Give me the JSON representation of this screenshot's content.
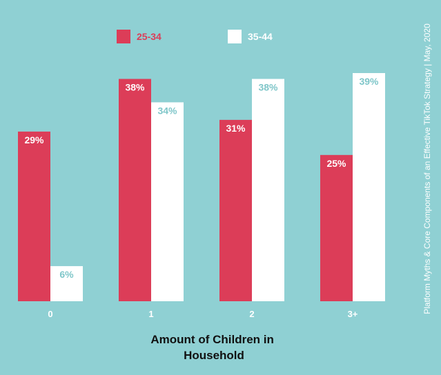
{
  "chart_data": {
    "type": "bar",
    "categories": [
      "0",
      "1",
      "2",
      "3+"
    ],
    "series": [
      {
        "name": "25-34",
        "values": [
          29,
          38,
          31,
          25
        ],
        "color": "#dc3d58",
        "label_color": "#ffffff"
      },
      {
        "name": "35-44",
        "values": [
          6,
          34,
          38,
          39
        ],
        "color": "#ffffff",
        "label_color": "#7fc6c9"
      }
    ],
    "value_suffix": "%",
    "xlabel_lines": [
      "Amount of Children in",
      "Household"
    ],
    "ylabel": "",
    "ylim": [
      0,
      39
    ],
    "legend_position": "top-center",
    "grid": false
  },
  "source_note": "Platform Myths & Core Components of an Effective TikTok Strategy | May, 2020",
  "colors": {
    "background": "#8fd0d3",
    "text_dark": "#111111"
  }
}
